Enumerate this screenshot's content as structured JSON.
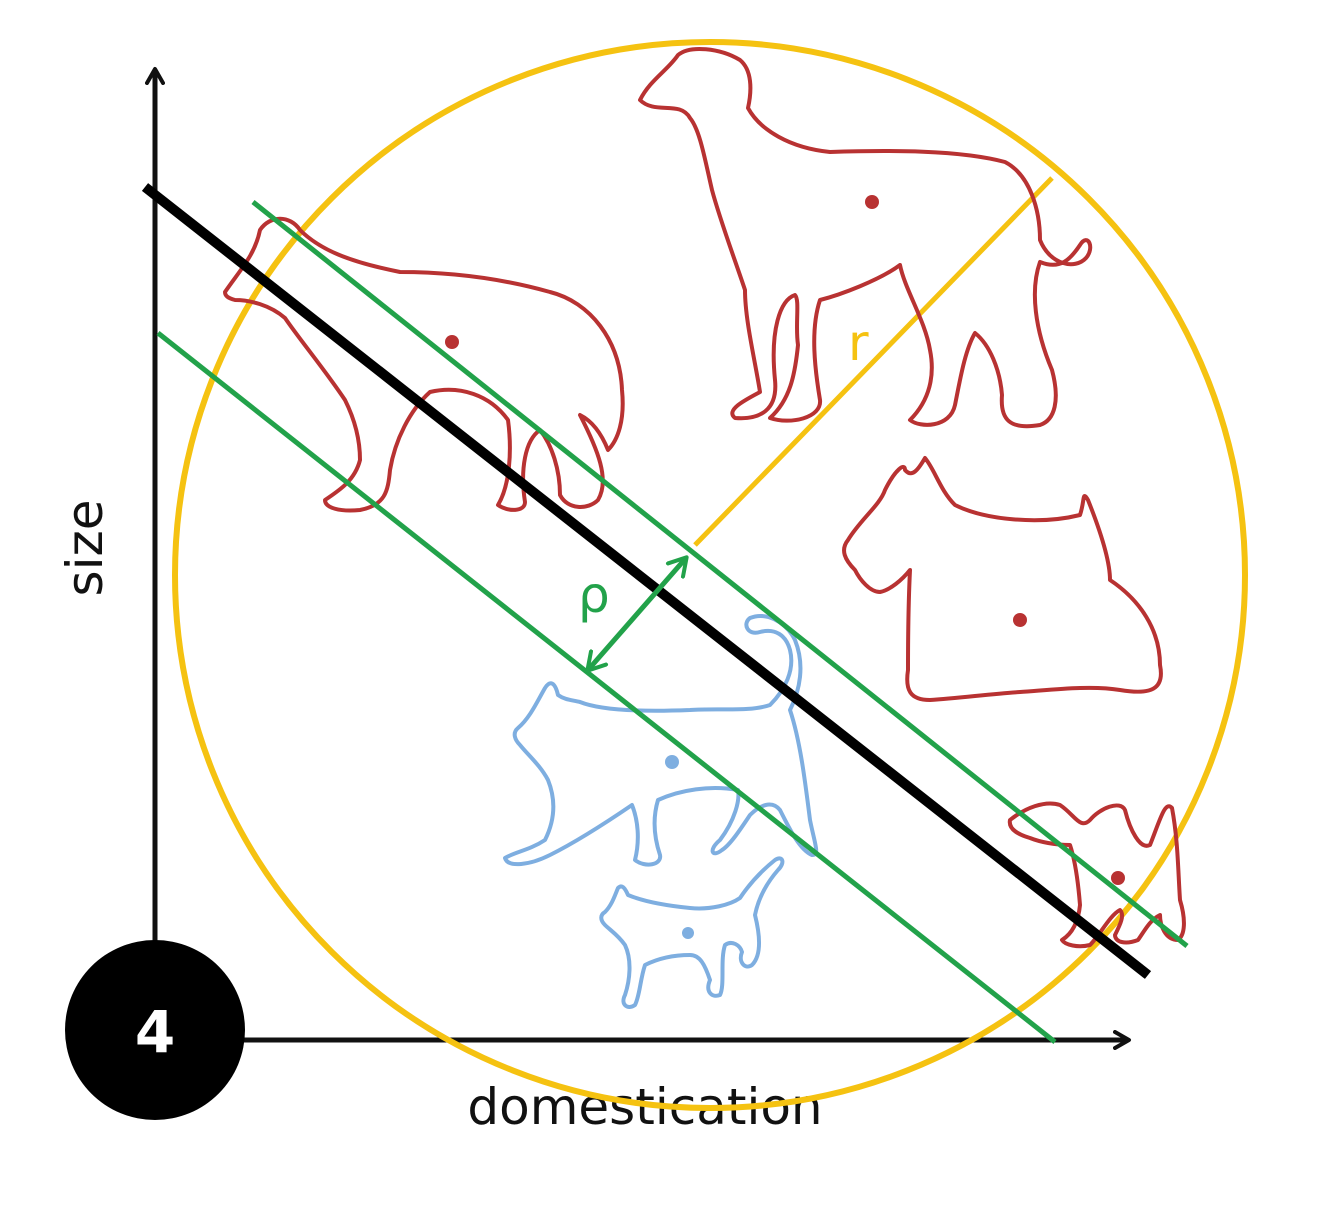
{
  "axes": {
    "x_label": "domestication",
    "y_label": "size"
  },
  "badge": {
    "number": "4"
  },
  "annotations": {
    "margin_symbol": "ρ",
    "radius_symbol": "r"
  },
  "classes": {
    "dog": {
      "color": "#b83232",
      "icon": "dog-icon",
      "count": 5
    },
    "cat": {
      "color": "#7eaee0",
      "icon": "cat-icon",
      "count": 2
    }
  },
  "colors": {
    "hyperplane": "#000000",
    "margin_lines": "#22a24a",
    "enclosing_circle": "#f5c211",
    "axes": "#111111"
  }
}
